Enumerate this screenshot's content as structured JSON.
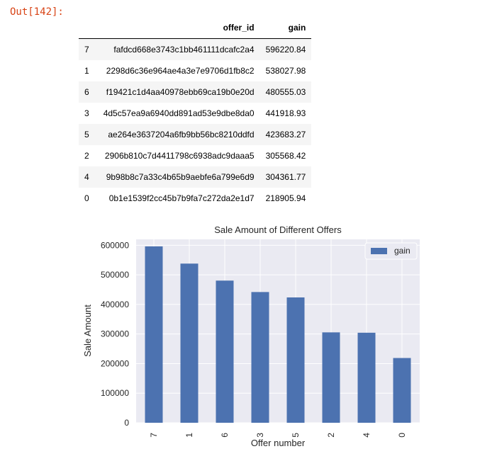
{
  "cell": {
    "out_prompt": "Out[142]:"
  },
  "table": {
    "columns": [
      "offer_id",
      "gain"
    ],
    "rows": [
      {
        "index": "7",
        "offer_id": "fafdcd668e3743c1bb461111dcafc2a4",
        "gain": "596220.84"
      },
      {
        "index": "1",
        "offer_id": "2298d6c36e964ae4a3e7e9706d1fb8c2",
        "gain": "538027.98"
      },
      {
        "index": "6",
        "offer_id": "f19421c1d4aa40978ebb69ca19b0e20d",
        "gain": "480555.03"
      },
      {
        "index": "3",
        "offer_id": "4d5c57ea9a6940dd891ad53e9dbe8da0",
        "gain": "441918.93"
      },
      {
        "index": "5",
        "offer_id": "ae264e3637204a6fb9bb56bc8210ddfd",
        "gain": "423683.27"
      },
      {
        "index": "2",
        "offer_id": "2906b810c7d4411798c6938adc9daaa5",
        "gain": "305568.42"
      },
      {
        "index": "4",
        "offer_id": "9b98b8c7a33c4b65b9aebfe6a799e6d9",
        "gain": "304361.77"
      },
      {
        "index": "0",
        "offer_id": "0b1e1539f2cc45b7b9fa7c272da2e1d7",
        "gain": "218905.94"
      }
    ]
  },
  "chart_data": {
    "type": "bar",
    "title": "Sale Amount of Different Offers",
    "xlabel": "Offer number",
    "ylabel": "Sale Amount",
    "categories": [
      "7",
      "1",
      "6",
      "3",
      "5",
      "2",
      "4",
      "0"
    ],
    "series": [
      {
        "name": "gain",
        "values": [
          596220.84,
          538027.98,
          480555.03,
          441918.93,
          423683.27,
          305568.42,
          304361.77,
          218905.94
        ]
      }
    ],
    "yticks": [
      "0",
      "100000",
      "200000",
      "300000",
      "400000",
      "500000",
      "600000"
    ],
    "ylim": [
      0,
      620000
    ],
    "grid": true,
    "legend": "top-right",
    "colors": {
      "bar": "#4c72b0",
      "background": "#eaeaf2",
      "grid": "#ffffff"
    }
  }
}
